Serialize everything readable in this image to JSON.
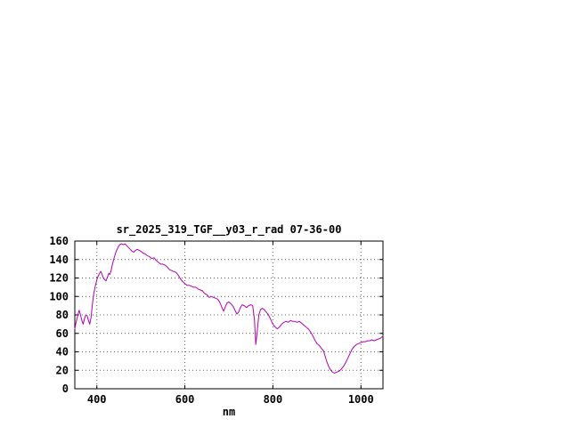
{
  "page": {
    "background_color": "#ffffff",
    "text_color": "#000000"
  },
  "chart_data": {
    "type": "line",
    "title": "sr_2025_319_TGF__y03_r_rad 07-36-00",
    "xlabel": "nm",
    "ylabel": "",
    "xlim": [
      350,
      1050
    ],
    "ylim": [
      0,
      160
    ],
    "x_ticks": [
      400,
      600,
      800,
      1000
    ],
    "y_ticks": [
      0,
      20,
      40,
      60,
      80,
      100,
      120,
      140,
      160
    ],
    "grid": true,
    "legend_position": "none",
    "line_color": "#b300b3",
    "grid_color": "#606060",
    "border_color": "#000000",
    "series": [
      {
        "name": "sr_2025_319_TGF__y03_r_rad",
        "points": [
          [
            350,
            65
          ],
          [
            352,
            70
          ],
          [
            355,
            76
          ],
          [
            358,
            82
          ],
          [
            360,
            85
          ],
          [
            363,
            80
          ],
          [
            366,
            74
          ],
          [
            369,
            70
          ],
          [
            372,
            76
          ],
          [
            375,
            80
          ],
          [
            378,
            79
          ],
          [
            381,
            74
          ],
          [
            384,
            70
          ],
          [
            387,
            78
          ],
          [
            390,
            92
          ],
          [
            393,
            103
          ],
          [
            396,
            110
          ],
          [
            400,
            118
          ],
          [
            403,
            122
          ],
          [
            406,
            125
          ],
          [
            409,
            127
          ],
          [
            412,
            124
          ],
          [
            415,
            120
          ],
          [
            418,
            118
          ],
          [
            421,
            117
          ],
          [
            424,
            121
          ],
          [
            427,
            125
          ],
          [
            430,
            124
          ],
          [
            433,
            129
          ],
          [
            436,
            136
          ],
          [
            440,
            143
          ],
          [
            444,
            149
          ],
          [
            448,
            153
          ],
          [
            452,
            156
          ],
          [
            456,
            157
          ],
          [
            460,
            156
          ],
          [
            464,
            157
          ],
          [
            468,
            155
          ],
          [
            472,
            153
          ],
          [
            476,
            151
          ],
          [
            480,
            149
          ],
          [
            484,
            148
          ],
          [
            488,
            150
          ],
          [
            492,
            151
          ],
          [
            496,
            150
          ],
          [
            500,
            149
          ],
          [
            505,
            147
          ],
          [
            510,
            146
          ],
          [
            515,
            144
          ],
          [
            520,
            143
          ],
          [
            525,
            141
          ],
          [
            530,
            142
          ],
          [
            535,
            139
          ],
          [
            540,
            137
          ],
          [
            545,
            135
          ],
          [
            550,
            135
          ],
          [
            555,
            134
          ],
          [
            560,
            132
          ],
          [
            565,
            129
          ],
          [
            570,
            128
          ],
          [
            575,
            127
          ],
          [
            580,
            126
          ],
          [
            585,
            123
          ],
          [
            590,
            119
          ],
          [
            595,
            116
          ],
          [
            600,
            114
          ],
          [
            605,
            112
          ],
          [
            610,
            112
          ],
          [
            615,
            111
          ],
          [
            620,
            110
          ],
          [
            625,
            110
          ],
          [
            630,
            108
          ],
          [
            635,
            107
          ],
          [
            640,
            106
          ],
          [
            645,
            103
          ],
          [
            650,
            102
          ],
          [
            655,
            99
          ],
          [
            660,
            100
          ],
          [
            665,
            99
          ],
          [
            670,
            98
          ],
          [
            675,
            97
          ],
          [
            680,
            93
          ],
          [
            685,
            87
          ],
          [
            688,
            84
          ],
          [
            692,
            89
          ],
          [
            696,
            93
          ],
          [
            700,
            94
          ],
          [
            705,
            92
          ],
          [
            710,
            89
          ],
          [
            715,
            84
          ],
          [
            718,
            81
          ],
          [
            722,
            83
          ],
          [
            726,
            88
          ],
          [
            730,
            91
          ],
          [
            735,
            90
          ],
          [
            740,
            88
          ],
          [
            745,
            90
          ],
          [
            750,
            91
          ],
          [
            754,
            90
          ],
          [
            758,
            75
          ],
          [
            761,
            48
          ],
          [
            764,
            60
          ],
          [
            768,
            80
          ],
          [
            772,
            86
          ],
          [
            776,
            87
          ],
          [
            780,
            86
          ],
          [
            785,
            83
          ],
          [
            790,
            80
          ],
          [
            795,
            75
          ],
          [
            800,
            70
          ],
          [
            805,
            67
          ],
          [
            810,
            65
          ],
          [
            815,
            67
          ],
          [
            820,
            70
          ],
          [
            825,
            72
          ],
          [
            830,
            73
          ],
          [
            835,
            72
          ],
          [
            840,
            74
          ],
          [
            845,
            73
          ],
          [
            850,
            73
          ],
          [
            855,
            72
          ],
          [
            860,
            73
          ],
          [
            865,
            71
          ],
          [
            870,
            69
          ],
          [
            875,
            67
          ],
          [
            880,
            65
          ],
          [
            885,
            62
          ],
          [
            890,
            58
          ],
          [
            895,
            53
          ],
          [
            900,
            49
          ],
          [
            905,
            47
          ],
          [
            910,
            44
          ],
          [
            915,
            41
          ],
          [
            918,
            36
          ],
          [
            922,
            30
          ],
          [
            926,
            25
          ],
          [
            930,
            21
          ],
          [
            935,
            18
          ],
          [
            940,
            17
          ],
          [
            945,
            18
          ],
          [
            950,
            19
          ],
          [
            955,
            21
          ],
          [
            960,
            24
          ],
          [
            965,
            28
          ],
          [
            970,
            33
          ],
          [
            975,
            38
          ],
          [
            980,
            43
          ],
          [
            985,
            46
          ],
          [
            990,
            48
          ],
          [
            995,
            49
          ],
          [
            1000,
            50
          ],
          [
            1005,
            51
          ],
          [
            1010,
            51
          ],
          [
            1015,
            52
          ],
          [
            1020,
            52
          ],
          [
            1025,
            53
          ],
          [
            1030,
            52
          ],
          [
            1035,
            53
          ],
          [
            1040,
            54
          ],
          [
            1045,
            55
          ],
          [
            1050,
            57
          ]
        ]
      }
    ]
  }
}
